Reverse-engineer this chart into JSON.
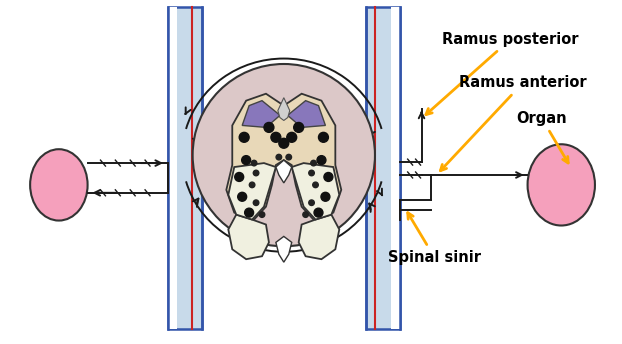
{
  "title": "",
  "background_color": "#ffffff",
  "labels": {
    "ramus_posterior": "Ramus posterior",
    "ramus_anterior": "Ramus anterior",
    "organ": "Organ",
    "spinal_sinir": "Spinal sinir"
  },
  "colors": {
    "vertebra_fill": "#c8daea",
    "vertebra_stroke": "#3355aa",
    "vertebra_red_line": "#cc2222",
    "cord_outer": "#dcc8c8",
    "cord_gray": "#e8d8b8",
    "dorsal_purple": "#8877bb",
    "dorsal_gray": "#d0d0d0",
    "ventral_white": "#f0f0e0",
    "nerve_line": "#1a1a1a",
    "ganglion_fill": "#f5a0bc",
    "organ_fill": "#f5a0bc",
    "organ_stroke": "#333333",
    "arrow_color": "#ffaa00",
    "label_color": "#000000"
  },
  "figsize": [
    6.22,
    3.44
  ],
  "dpi": 100
}
